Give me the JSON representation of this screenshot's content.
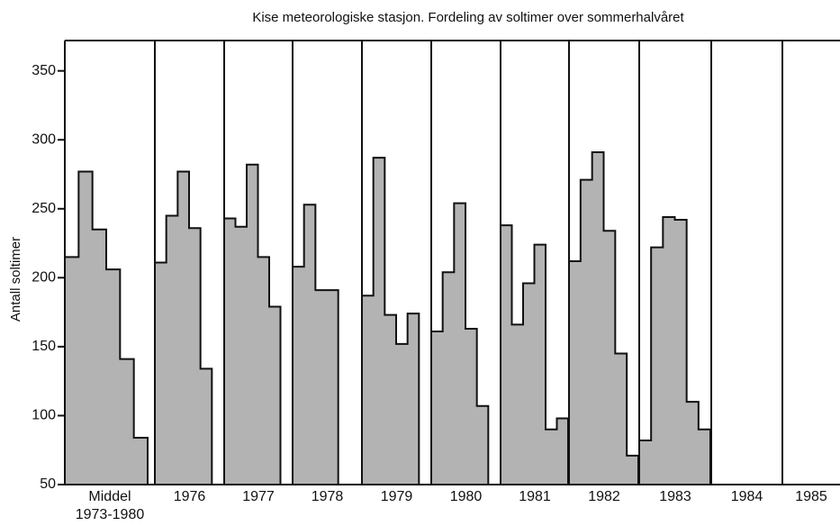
{
  "chart_data": {
    "type": "step-panels",
    "title": "Kise meteorologiske stasjon. Fordeling av soltimer over sommerhalvåret",
    "y_label": "Antall soltimer",
    "ylim": [
      50,
      372
    ],
    "yticks": [
      50,
      100,
      150,
      200,
      250,
      300,
      350
    ],
    "color": "#b3b3b3",
    "groups": [
      {
        "label": "Middel",
        "sublabel": "1973-1980",
        "values": [
          215,
          277,
          235,
          206,
          141,
          84
        ]
      },
      {
        "label": "1976",
        "values": [
          211,
          245,
          277,
          236,
          134,
          null
        ]
      },
      {
        "label": "1977",
        "values": [
          243,
          237,
          282,
          215,
          179,
          null
        ]
      },
      {
        "label": "1978",
        "values": [
          208,
          253,
          191,
          191,
          null,
          null
        ]
      },
      {
        "label": "1979",
        "values": [
          187,
          287,
          173,
          152,
          174,
          null
        ]
      },
      {
        "label": "1980",
        "values": [
          161,
          204,
          254,
          163,
          107,
          null
        ]
      },
      {
        "label": "1981",
        "values": [
          238,
          166,
          196,
          224,
          90,
          98
        ]
      },
      {
        "label": "1982",
        "values": [
          212,
          271,
          291,
          234,
          145,
          71
        ]
      },
      {
        "label": "1983",
        "values": [
          82,
          222,
          244,
          242,
          110,
          90
        ]
      },
      {
        "label": "1984",
        "values": [
          null,
          null,
          null,
          null,
          null,
          null
        ]
      },
      {
        "label": "1985",
        "values": [
          null,
          null,
          null,
          null,
          null,
          null
        ]
      }
    ]
  }
}
